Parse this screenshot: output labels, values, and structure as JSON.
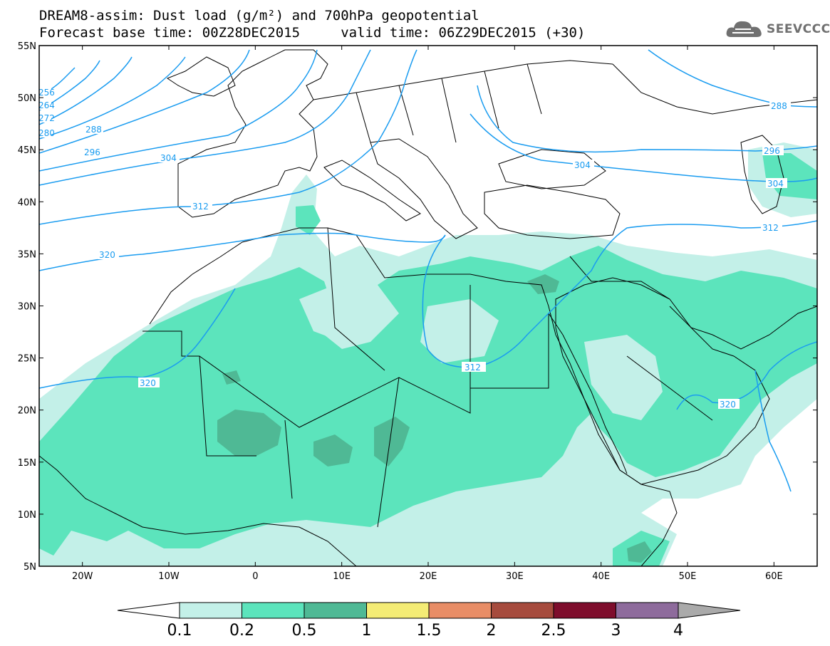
{
  "title": {
    "line1": "DREAM8-assim: Dust load (g/m²) and 700hPa geopotential",
    "line2": "Forecast base time: 00Z28DEC2015     valid time: 06Z29DEC2015 (+30)"
  },
  "logo": {
    "text": "SEEVCCC",
    "icon": "cloud-icon"
  },
  "map": {
    "lon_range": [
      -25,
      65
    ],
    "lat_range": [
      5,
      55
    ],
    "lat_ticks": [
      "55N",
      "50N",
      "45N",
      "40N",
      "35N",
      "30N",
      "25N",
      "20N",
      "15N",
      "10N",
      "5N"
    ],
    "lon_ticks": [
      "20W",
      "10W",
      "0",
      "10E",
      "20E",
      "30E",
      "40E",
      "50E",
      "60E"
    ]
  },
  "contours": {
    "color": "#1a9cf0",
    "labels": [
      "256",
      "264",
      "272",
      "280",
      "288",
      "296",
      "304",
      "312",
      "320",
      "288",
      "304",
      "312",
      "296",
      "304",
      "312",
      "320",
      "312",
      "320"
    ]
  },
  "colorbar": {
    "levels": [
      "0.1",
      "0.2",
      "0.5",
      "1",
      "1.5",
      "2",
      "2.5",
      "3",
      "4"
    ],
    "colors": [
      "#ffffff",
      "#c3f0e8",
      "#5ce4bc",
      "#4fb995",
      "#f4ec75",
      "#e88d66",
      "#a64b3d",
      "#7e0d2c",
      "#8e6b9c",
      "#aaaaaa"
    ]
  },
  "dust_colors": {
    "light": "#c3f0e8",
    "medium": "#5ce4bc",
    "dark": "#4fb995",
    "darker": "#5a9c84"
  }
}
